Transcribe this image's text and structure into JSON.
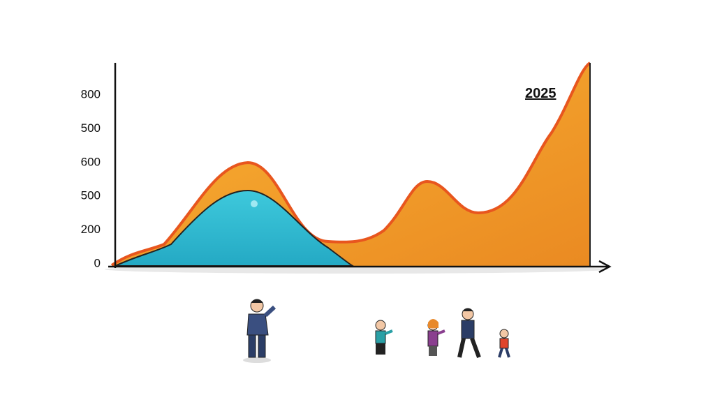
{
  "y_axis_labels": [
    "800",
    "500",
    "600",
    "500",
    "200",
    "0"
  ],
  "annotation": "2025"
}
